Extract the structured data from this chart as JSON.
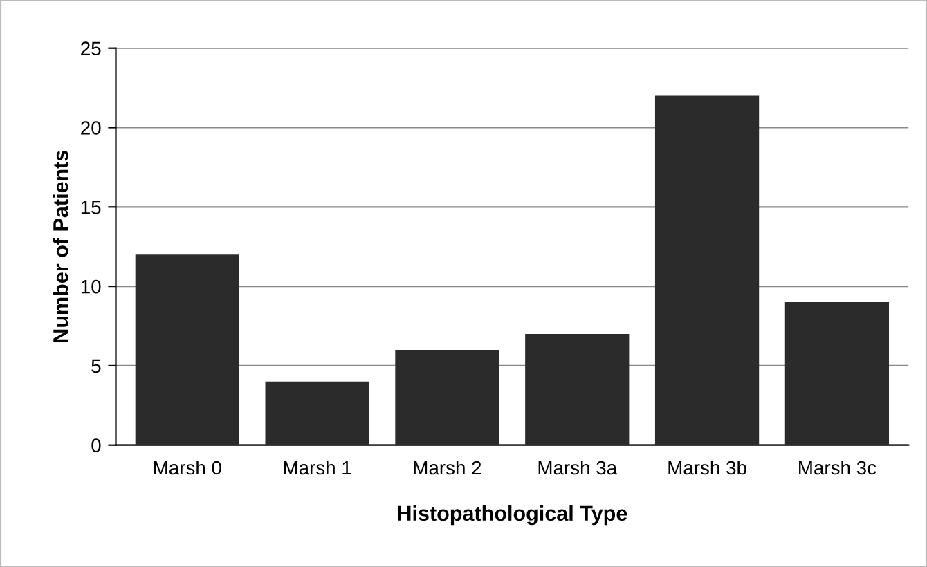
{
  "chart_data": {
    "type": "bar",
    "xlabel": "Histopathological Type",
    "ylabel": "Number of Patients",
    "categories": [
      "Marsh 0",
      "Marsh 1",
      "Marsh 2",
      "Marsh 3a",
      "Marsh 3b",
      "Marsh 3c"
    ],
    "values": [
      12,
      4,
      6,
      7,
      22,
      9
    ],
    "color": "#2b2b2b",
    "ylim": [
      0,
      25
    ],
    "yticks": [
      0,
      5,
      10,
      15,
      20,
      25
    ],
    "grid": "y",
    "legend": false
  }
}
